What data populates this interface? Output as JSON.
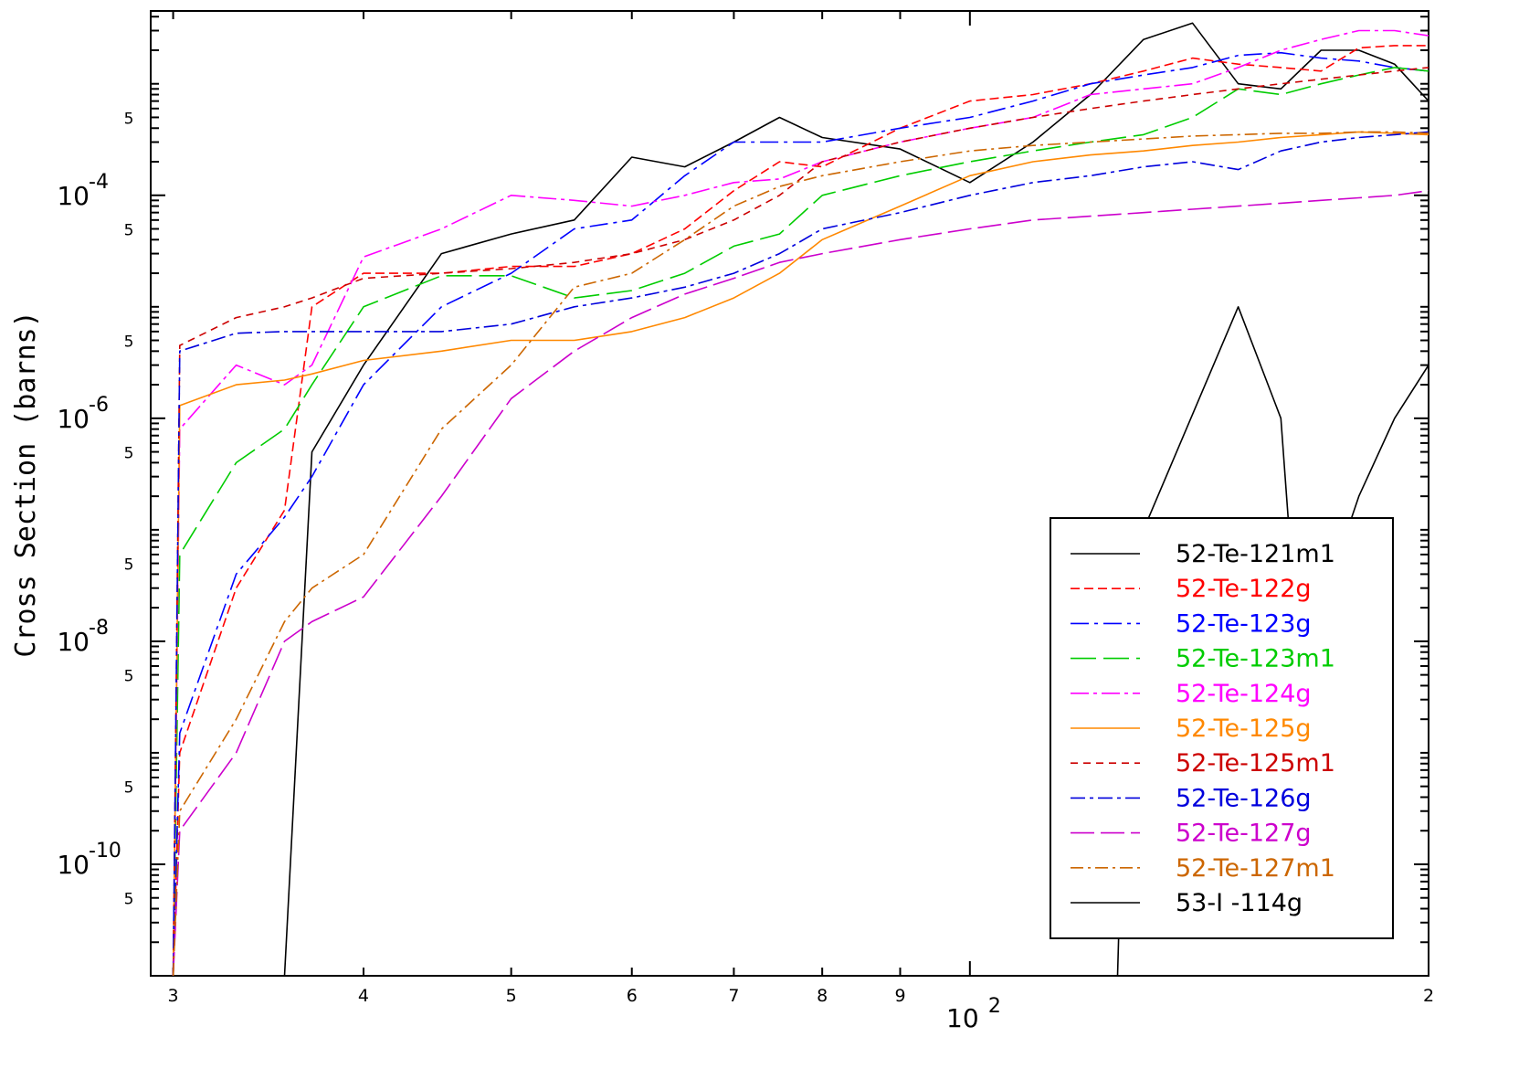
{
  "chart_data": {
    "type": "line",
    "title": "",
    "xlabel": "",
    "ylabel": "Cross Section (barns)",
    "xscale": "log",
    "yscale": "log",
    "xlim": [
      29,
      200
    ],
    "ylim": [
      1e-11,
      0.0045
    ],
    "grid": false,
    "legend_position": "bottom-right",
    "x_ticks": {
      "minor": [
        {
          "value": 30,
          "label": "3"
        },
        {
          "value": 40,
          "label": "4"
        },
        {
          "value": 50,
          "label": "5"
        },
        {
          "value": 60,
          "label": "6"
        },
        {
          "value": 70,
          "label": "7"
        },
        {
          "value": 80,
          "label": "8"
        },
        {
          "value": 90,
          "label": "9"
        },
        {
          "value": 200,
          "label": "2"
        }
      ],
      "major": [
        {
          "value": 100,
          "base": "10",
          "exp": "2"
        }
      ]
    },
    "y_ticks": {
      "major": [
        {
          "value": 0.0001,
          "base": "10",
          "exp": "-4"
        },
        {
          "value": 1e-06,
          "base": "10",
          "exp": "-6"
        },
        {
          "value": 1e-08,
          "base": "10",
          "exp": "-8"
        },
        {
          "value": 1e-10,
          "base": "10",
          "exp": "-10"
        }
      ],
      "minor_label": "5",
      "minor_values": [
        0.0005,
        5e-05,
        5e-06,
        5e-07,
        5e-08,
        5e-09,
        5e-10,
        5e-11
      ]
    },
    "series": [
      {
        "name": "52-Te-121m1",
        "color": "#000000",
        "dash": "solid",
        "x": [
          35.5,
          37,
          40,
          45,
          50,
          55,
          60,
          65,
          70,
          75,
          80,
          90,
          100,
          110,
          120,
          130,
          140,
          150,
          160,
          170,
          180,
          190,
          200
        ],
        "y": [
          1e-11,
          5e-07,
          3e-06,
          3e-05,
          4.5e-05,
          6e-05,
          0.00022,
          0.00018,
          0.0003,
          0.0005,
          0.00033,
          0.00026,
          0.00013,
          0.0003,
          0.0008,
          0.0025,
          0.0035,
          0.001,
          0.0009,
          0.002,
          0.002,
          0.0015,
          0.0007
        ]
      },
      {
        "name": "52-Te-122g",
        "color": "#ff0000",
        "dash": "10,5",
        "x": [
          30,
          30.3,
          33,
          35.5,
          37,
          40,
          45,
          50,
          55,
          60,
          65,
          70,
          75,
          80,
          90,
          100,
          110,
          120,
          130,
          140,
          150,
          160,
          170,
          180,
          190,
          200
        ],
        "y": [
          1e-11,
          1e-09,
          3e-08,
          1.5e-07,
          1e-05,
          2e-05,
          2e-05,
          2.3e-05,
          2.3e-05,
          3e-05,
          5e-05,
          0.00011,
          0.0002,
          0.00018,
          0.0004,
          0.0007,
          0.0008,
          0.001,
          0.0013,
          0.0017,
          0.0015,
          0.0014,
          0.0013,
          0.0021,
          0.0022,
          0.0022
        ]
      },
      {
        "name": "52-Te-123g",
        "color": "#0000ff",
        "dash": "20,6,4,6",
        "x": [
          30,
          30.3,
          33,
          35.5,
          37,
          40,
          45,
          50,
          55,
          60,
          65,
          70,
          75,
          80,
          90,
          100,
          110,
          120,
          130,
          140,
          150,
          160,
          170,
          180,
          190,
          200
        ],
        "y": [
          1e-11,
          1.5e-09,
          4e-08,
          1.3e-07,
          3e-07,
          2e-06,
          1e-05,
          2e-05,
          5e-05,
          6e-05,
          0.00015,
          0.0003,
          0.0003,
          0.0003,
          0.0004,
          0.0005,
          0.0007,
          0.001,
          0.0012,
          0.0014,
          0.0018,
          0.0019,
          0.0017,
          0.0016,
          0.0014,
          0.0013
        ]
      },
      {
        "name": "52-Te-123m1",
        "color": "#00cc00",
        "dash": "28,8",
        "x": [
          30,
          30.3,
          33,
          35.5,
          37,
          40,
          45,
          50,
          55,
          60,
          65,
          70,
          75,
          80,
          90,
          100,
          110,
          120,
          130,
          140,
          150,
          160,
          170,
          180,
          190,
          200
        ],
        "y": [
          1e-11,
          6e-08,
          4e-07,
          8e-07,
          2e-06,
          1e-05,
          1.9e-05,
          1.9e-05,
          1.2e-05,
          1.4e-05,
          2e-05,
          3.5e-05,
          4.5e-05,
          0.0001,
          0.00015,
          0.0002,
          0.00025,
          0.0003,
          0.00035,
          0.0005,
          0.0009,
          0.0008,
          0.001,
          0.0012,
          0.0014,
          0.0013
        ]
      },
      {
        "name": "52-Te-124g",
        "color": "#ff00ff",
        "dash": "20,5,4,5",
        "x": [
          30,
          30.3,
          33,
          35.5,
          37,
          40,
          45,
          50,
          55,
          60,
          65,
          70,
          75,
          80,
          90,
          100,
          110,
          120,
          130,
          140,
          150,
          160,
          170,
          180,
          190,
          200
        ],
        "y": [
          1e-11,
          8e-07,
          3e-06,
          2e-06,
          3e-06,
          2.8e-05,
          5e-05,
          0.0001,
          9e-05,
          8e-05,
          0.0001,
          0.00013,
          0.00014,
          0.0002,
          0.0003,
          0.0004,
          0.0005,
          0.0008,
          0.0009,
          0.001,
          0.0014,
          0.002,
          0.0025,
          0.003,
          0.003,
          0.0027
        ]
      },
      {
        "name": "52-Te-125g",
        "color": "#ff8800",
        "dash": "solid",
        "x": [
          30,
          30.3,
          33,
          35.5,
          37,
          40,
          45,
          50,
          55,
          60,
          65,
          70,
          75,
          80,
          90,
          100,
          110,
          120,
          130,
          140,
          150,
          160,
          170,
          180,
          190,
          200
        ],
        "y": [
          1e-11,
          1.3e-06,
          2e-06,
          2.2e-06,
          2.5e-06,
          3.3e-06,
          4e-06,
          5e-06,
          5e-06,
          6e-06,
          8e-06,
          1.2e-05,
          2e-05,
          4e-05,
          8e-05,
          0.00015,
          0.0002,
          0.00023,
          0.00025,
          0.00028,
          0.0003,
          0.00033,
          0.00035,
          0.00037,
          0.00036,
          0.00035
        ]
      },
      {
        "name": "52-Te-125m1",
        "color": "#cc0000",
        "dash": "8,6",
        "x": [
          30,
          30.3,
          33,
          35.5,
          37,
          40,
          45,
          50,
          55,
          60,
          65,
          70,
          75,
          80,
          90,
          100,
          110,
          120,
          130,
          140,
          150,
          160,
          170,
          180,
          190,
          200
        ],
        "y": [
          1e-11,
          4.5e-06,
          8e-06,
          1e-05,
          1.2e-05,
          1.8e-05,
          2e-05,
          2.2e-05,
          2.5e-05,
          3e-05,
          4e-05,
          6e-05,
          0.0001,
          0.0002,
          0.0003,
          0.0004,
          0.0005,
          0.0006,
          0.0007,
          0.0008,
          0.0009,
          0.001,
          0.0011,
          0.0012,
          0.0013,
          0.0014
        ]
      },
      {
        "name": "52-Te-126g",
        "color": "#0000dd",
        "dash": "16,5,4,5",
        "x": [
          30,
          30.3,
          33,
          35.5,
          37,
          40,
          45,
          50,
          55,
          60,
          65,
          70,
          75,
          80,
          90,
          100,
          110,
          120,
          130,
          140,
          150,
          160,
          170,
          180,
          190,
          200
        ],
        "y": [
          1e-11,
          4e-06,
          5.8e-06,
          6e-06,
          6e-06,
          6e-06,
          6e-06,
          7e-06,
          1e-05,
          1.2e-05,
          1.5e-05,
          2e-05,
          3e-05,
          5e-05,
          7e-05,
          0.0001,
          0.00013,
          0.00015,
          0.00018,
          0.0002,
          0.00017,
          0.00025,
          0.0003,
          0.00033,
          0.00035,
          0.00037
        ]
      },
      {
        "name": "52-Te-127g",
        "color": "#cc00cc",
        "dash": "26,7",
        "x": [
          30,
          30.3,
          33,
          35.5,
          37,
          40,
          45,
          50,
          55,
          60,
          65,
          70,
          75,
          80,
          90,
          100,
          110,
          120,
          130,
          140,
          150,
          160,
          170,
          180,
          190,
          200
        ],
        "y": [
          1e-11,
          2e-10,
          1e-09,
          1e-08,
          1.5e-08,
          2.5e-08,
          2e-07,
          1.5e-06,
          4e-06,
          8e-06,
          1.3e-05,
          1.8e-05,
          2.5e-05,
          3e-05,
          4e-05,
          5e-05,
          6e-05,
          6.5e-05,
          7e-05,
          7.5e-05,
          8e-05,
          8.5e-05,
          9e-05,
          9.5e-05,
          0.0001,
          0.00011
        ]
      },
      {
        "name": "52-Te-127m1",
        "color": "#cc6600",
        "dash": "14,5,3,5",
        "x": [
          30,
          30.3,
          33,
          35.5,
          37,
          40,
          45,
          50,
          55,
          60,
          65,
          70,
          75,
          80,
          90,
          100,
          110,
          120,
          130,
          140,
          150,
          160,
          170,
          180,
          190,
          200
        ],
        "y": [
          1e-11,
          3e-10,
          2e-09,
          1.5e-08,
          3e-08,
          6e-08,
          8e-07,
          3e-06,
          1.5e-05,
          2e-05,
          4e-05,
          8e-05,
          0.00012,
          0.00015,
          0.0002,
          0.00025,
          0.00028,
          0.0003,
          0.00032,
          0.00034,
          0.00035,
          0.00036,
          0.00036,
          0.00037,
          0.00037,
          0.00036
        ]
      },
      {
        "name": "53-I -114g",
        "color": "#000000",
        "dash": "solid",
        "x": [
          125,
          126,
          130,
          150,
          160,
          166,
          168,
          170,
          180,
          190,
          200
        ],
        "y": [
          1e-11,
          5e-10,
          1e-07,
          1e-05,
          1e-06,
          1e-09,
          1e-09,
          2e-08,
          2e-07,
          1e-06,
          3e-06
        ]
      }
    ]
  }
}
